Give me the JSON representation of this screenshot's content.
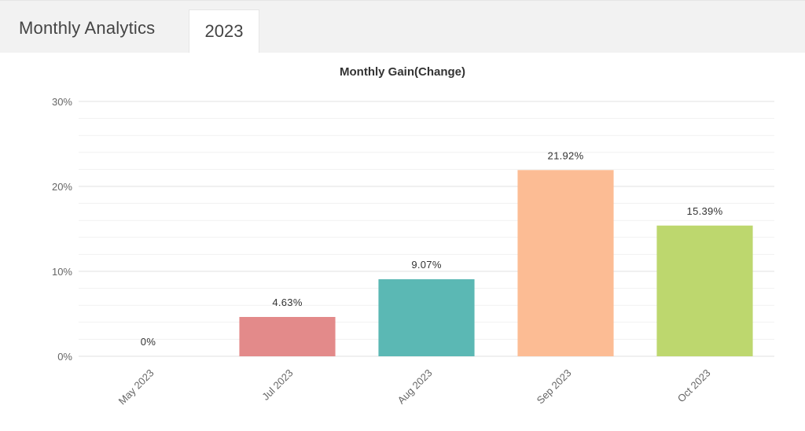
{
  "header": {
    "title": "Monthly Analytics",
    "tabs": [
      {
        "label": "2023"
      }
    ]
  },
  "colors": {
    "bars": [
      "#e38a8a",
      "#e38a8a",
      "#5bb8b4",
      "#fcbc94",
      "#bdd76e"
    ],
    "header_bg": "#f2f2f2",
    "grid": "#e6e6e6"
  },
  "chart_data": {
    "type": "bar",
    "title": "Monthly Gain(Change)",
    "xlabel": "",
    "ylabel": "",
    "categories": [
      "May 2023",
      "Jul 2023",
      "Aug 2023",
      "Sep 2023",
      "Oct 2023"
    ],
    "values": [
      0,
      4.63,
      9.07,
      21.92,
      15.39
    ],
    "data_labels": [
      "0%",
      "4.63%",
      "9.07%",
      "21.92%",
      "15.39%"
    ],
    "ylim": [
      0,
      30
    ],
    "yticks": [
      0,
      10,
      20,
      30
    ],
    "ytick_labels": [
      "0%",
      "10%",
      "20%",
      "30%"
    ],
    "grid": true,
    "legend": "none"
  }
}
